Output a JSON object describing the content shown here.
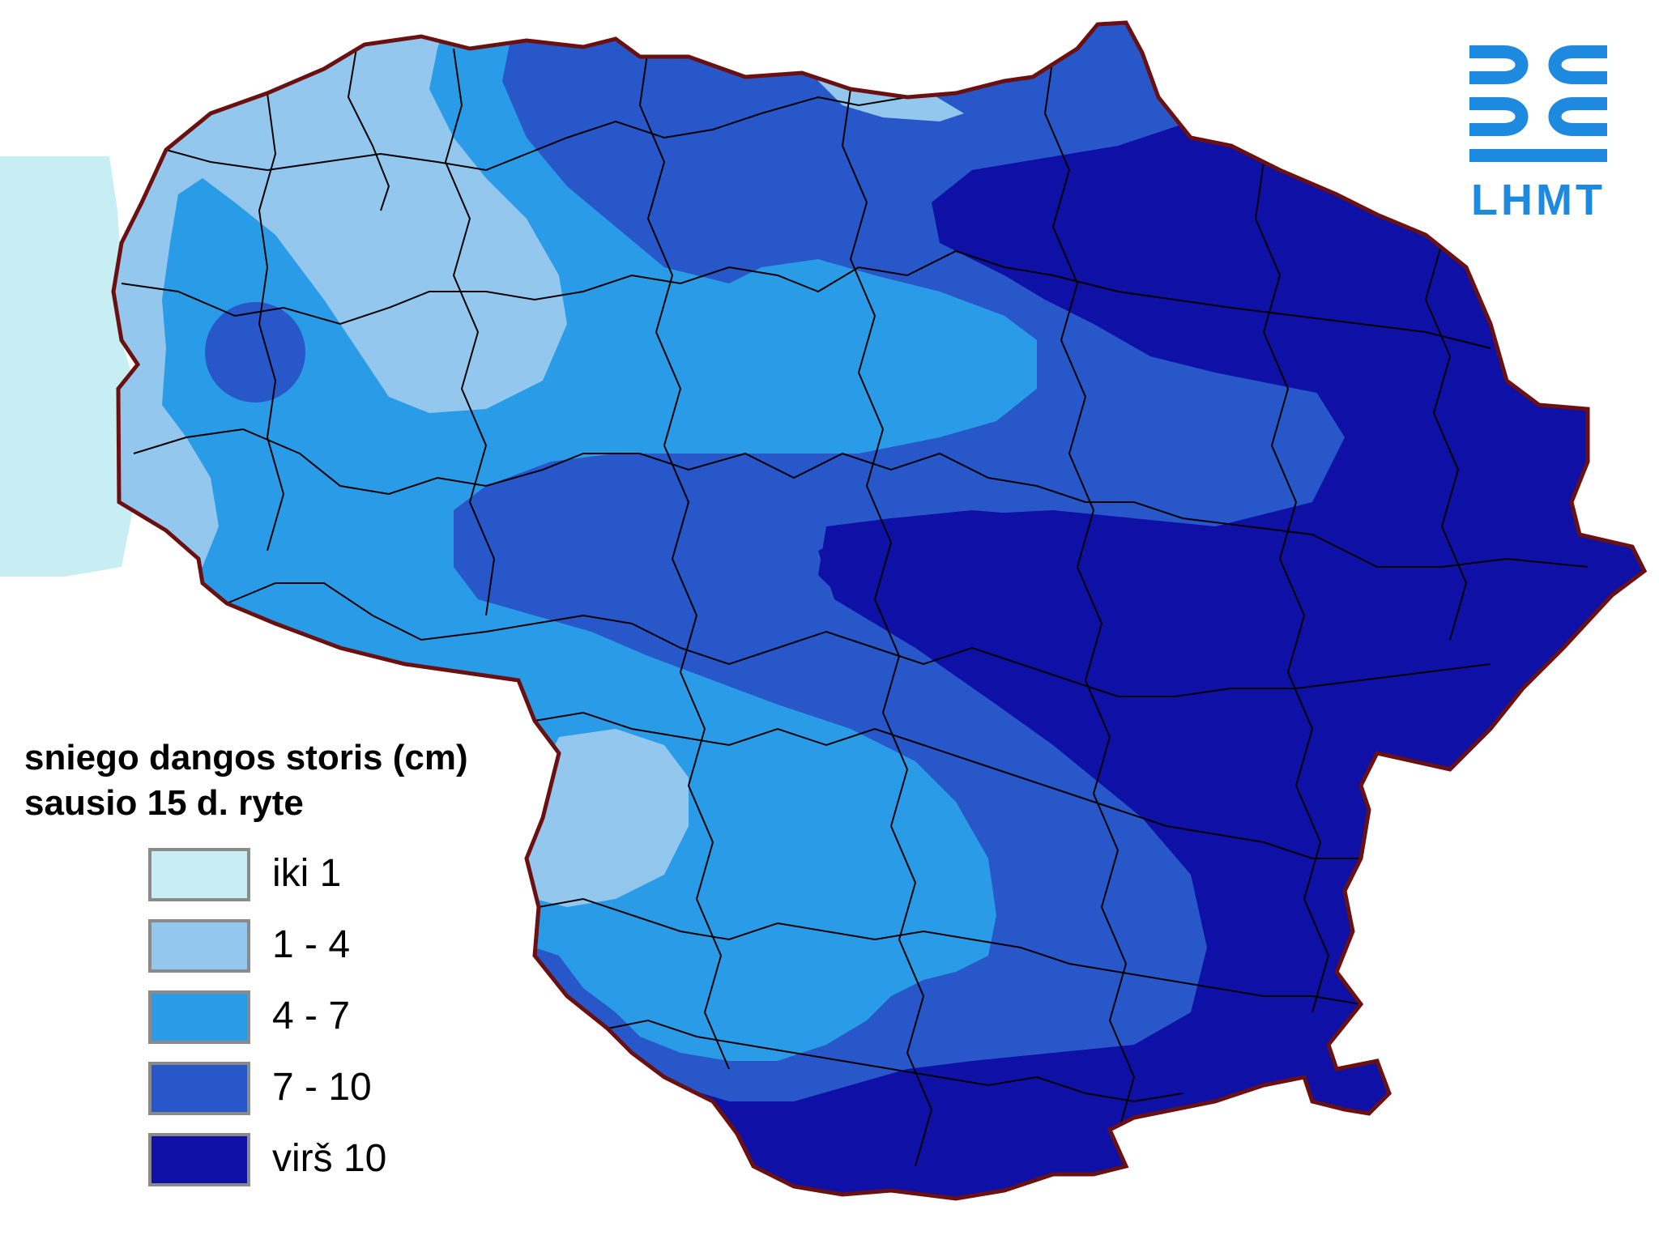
{
  "legend": {
    "title_line1": "sniego dangos storis (cm)",
    "title_line2": "sausio 15 d. ryte",
    "classes": [
      {
        "label": "iki 1",
        "color": "#c6eef3"
      },
      {
        "label": "1 - 4",
        "color": "#93c7ee"
      },
      {
        "label": "4 - 7",
        "color": "#2a9be6"
      },
      {
        "label": "7 - 10",
        "color": "#2757c9"
      },
      {
        "label": "virš 10",
        "color": "#0e10a6"
      }
    ]
  },
  "logo": {
    "text": "LHMT",
    "color": "#1d8ae0",
    "icon": "lhmt-waves-logo"
  },
  "map": {
    "border_color": "#6b1010",
    "district_line_color": "#000000",
    "sea_color": "#c6eef3"
  }
}
